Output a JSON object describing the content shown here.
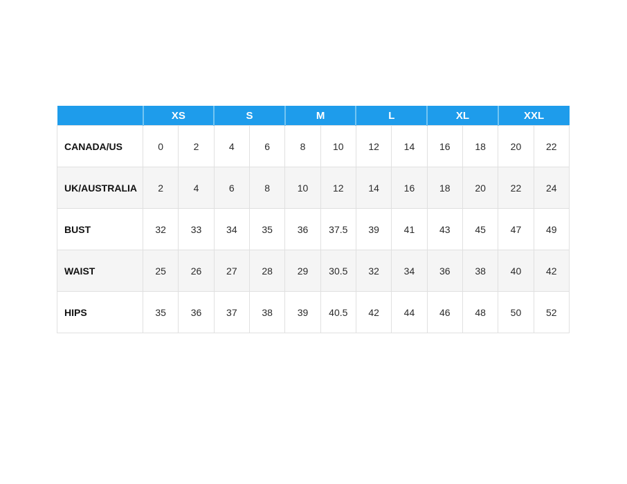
{
  "page": {
    "background": "#ffffff"
  },
  "colors": {
    "header_bg": "#1e9ceb",
    "header_divider": "#74c5f2",
    "header_text": "#ffffff",
    "row_bg": "#ffffff",
    "row_alt_bg": "#f5f5f5",
    "border": "#e0e0e0",
    "label_text": "#111111",
    "value_text": "#2a2a2a"
  },
  "chart_data": {
    "type": "table",
    "size_headers": [
      "XS",
      "S",
      "M",
      "L",
      "XL",
      "XXL"
    ],
    "columns_per_size": 2,
    "rows": [
      {
        "label": "CANADA/US",
        "values": [
          "0",
          "2",
          "4",
          "6",
          "8",
          "10",
          "12",
          "14",
          "16",
          "18",
          "20",
          "22"
        ]
      },
      {
        "label": "UK/AUSTRALIA",
        "values": [
          "2",
          "4",
          "6",
          "8",
          "10",
          "12",
          "14",
          "16",
          "18",
          "20",
          "22",
          "24"
        ]
      },
      {
        "label": "BUST",
        "values": [
          "32",
          "33",
          "34",
          "35",
          "36",
          "37.5",
          "39",
          "41",
          "43",
          "45",
          "47",
          "49"
        ]
      },
      {
        "label": "WAIST",
        "values": [
          "25",
          "26",
          "27",
          "28",
          "29",
          "30.5",
          "32",
          "34",
          "36",
          "38",
          "40",
          "42"
        ]
      },
      {
        "label": "HIPS",
        "values": [
          "35",
          "36",
          "37",
          "38",
          "39",
          "40.5",
          "42",
          "44",
          "46",
          "48",
          "50",
          "52"
        ]
      }
    ]
  }
}
